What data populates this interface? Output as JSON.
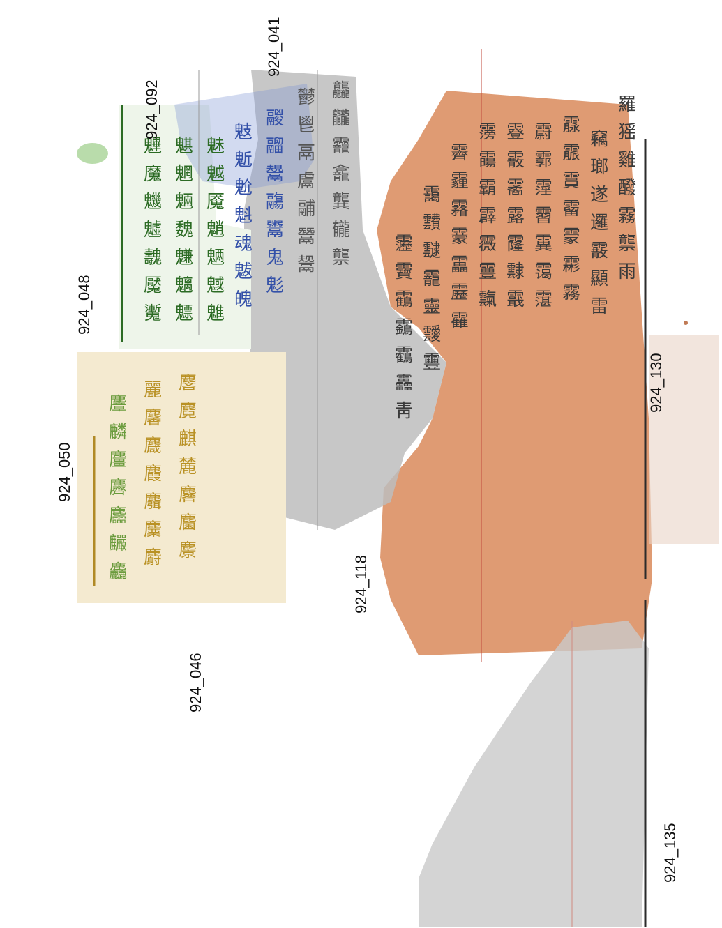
{
  "image": {
    "description_hidden": true,
    "colors": {
      "background": "#ffffff",
      "frag_118": "#d98a5b",
      "frag_050": "#f4ead0",
      "frag_048": "#5aa44b",
      "frag_092": "#7f95d3",
      "frag_041": "#bdbdbd",
      "frag_135": "#c9c9c9",
      "frag_130": "#c9c9c9",
      "ink": "#1f1f1f"
    }
  },
  "labels": [
    {
      "id": "lbl-924-092",
      "text": "924_092"
    },
    {
      "id": "lbl-924-041",
      "text": "924_041"
    },
    {
      "id": "lbl-924-048",
      "text": "924_048"
    },
    {
      "id": "lbl-924-050",
      "text": "924_050"
    },
    {
      "id": "lbl-924-118",
      "text": "924_118"
    },
    {
      "id": "lbl-924-130",
      "text": "924_130"
    },
    {
      "id": "lbl-924-046",
      "text": "924_046"
    },
    {
      "id": "lbl-924-135",
      "text": "924_135"
    }
  ],
  "fragments": [
    {
      "name": "fragment-924-050",
      "color_key": "frag_050"
    },
    {
      "name": "fragment-924-048",
      "color_key": "frag_048"
    },
    {
      "name": "fragment-924-092",
      "color_key": "frag_092"
    },
    {
      "name": "fragment-924-041",
      "color_key": "frag_041"
    },
    {
      "name": "fragment-924-118",
      "color_key": "frag_118"
    },
    {
      "name": "fragment-924-130",
      "color_key": "frag_130"
    },
    {
      "name": "fragment-924-135",
      "color_key": "frag_135"
    }
  ],
  "glyph_text": {
    "col1": "羅猺雞醱霧龒雨",
    "col2": "竊瑯遂邏霰顯雷",
    "col3": "霡霢霣霤霥霦霧",
    "col4": "霨霩霪霫霬霭霮",
    "col5": "霯霰霱露霳霴霵",
    "col6": "霶霷霸霹霺霻霼",
    "col7": "霽霾霿靀靁靂靃",
    "col8": "靄靅靆靇靈靉靊",
    "col9": "靋靌靍靎靏靐靑",
    "col10": "龘龖龗龕龔龓龒",
    "col11": "鬱鬯鬲鬳鬴鬵鬶",
    "col12": "鬷鬸鬹鬺鬻鬼鬽",
    "col13": "鬾鬿魀魁魂魃魄",
    "col14": "魅魆魇魈魉魊魋",
    "col15": "魌魍魎魏魐魑魒",
    "col16": "魓魔魕魖魗魘魙",
    "col17": "麐麑麒麓麔麕麖",
    "col18": "麗麘麙麚麛麜麝",
    "col19": "麞麟麠麡麢麣麤"
  }
}
